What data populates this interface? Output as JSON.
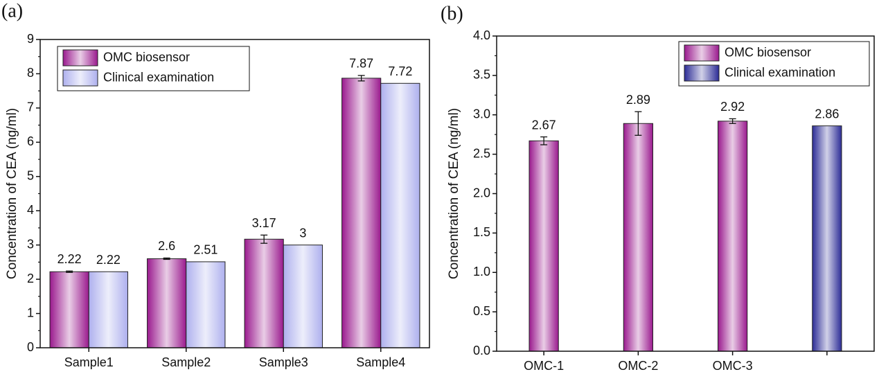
{
  "chart_data": [
    {
      "type": "bar",
      "panel_label": "(a)",
      "ylabel": "Concentration of CEA (ng/ml)",
      "categories": [
        "Sample1",
        "Sample2",
        "Sample3",
        "Sample4"
      ],
      "series": [
        {
          "name": "OMC biosensor",
          "color": "#9a1a8e",
          "values": [
            2.22,
            2.6,
            3.17,
            7.87
          ],
          "errors": [
            0.02,
            0.02,
            0.12,
            0.08
          ]
        },
        {
          "name": "Clinical examination",
          "color": "#aeb0ee",
          "values": [
            2.22,
            2.51,
            3,
            7.72
          ]
        }
      ],
      "ylim": [
        0,
        9
      ],
      "yticks": [
        0,
        1,
        2,
        3,
        4,
        5,
        6,
        7,
        8,
        9
      ],
      "legend": "upper-left",
      "grouped": true
    },
    {
      "type": "bar",
      "panel_label": "(b)",
      "ylabel": "Concentration of CEA (ng/ml)",
      "categories": [
        "OMC-1",
        "OMC-2",
        "OMC-3",
        null
      ],
      "series": [
        {
          "name": "OMC biosensor",
          "color": "#9a1a8e",
          "values": [
            2.67,
            2.89,
            2.92,
            null
          ],
          "errors": [
            0.05,
            0.15,
            0.03,
            null
          ]
        },
        {
          "name": "Clinical examination",
          "color": "#2c2c96",
          "values": [
            null,
            null,
            null,
            2.86
          ]
        }
      ],
      "ylim": [
        0,
        4
      ],
      "yticks": [
        {
          "value": 0,
          "label": "0.0"
        },
        0.5,
        {
          "value": 1,
          "label": "1.0"
        },
        1.5,
        {
          "value": 2,
          "label": "2.0"
        },
        2.5,
        {
          "value": 3,
          "label": "3.0"
        },
        3.5,
        {
          "value": 4,
          "label": "4.0"
        }
      ],
      "legend": "upper-right",
      "grouped": false
    }
  ]
}
